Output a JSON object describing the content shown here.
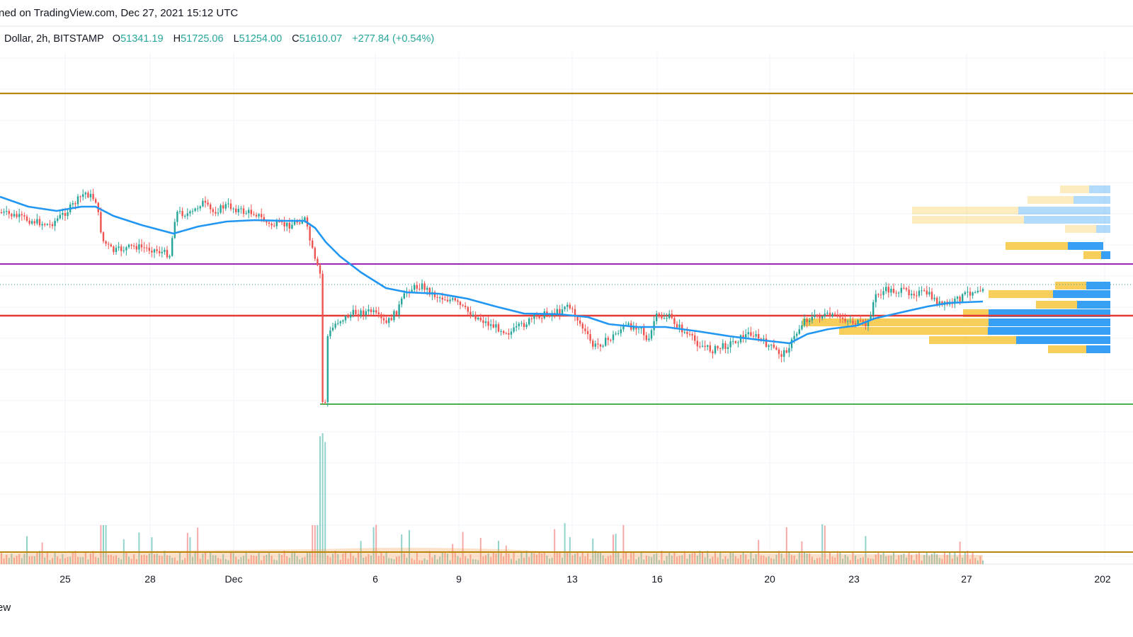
{
  "header": {
    "published": "ned on TradingView.com, Dec 27, 2021 15:12 UTC",
    "symbol": "Dollar, 2h, BITSTAMP",
    "open_label": "O",
    "open_value": "51341.19",
    "high_label": "H",
    "high_value": "51725.06",
    "low_label": "L",
    "low_value": "51254.00",
    "close_label": "C",
    "close_value": "51610.07",
    "change": "+277.84 (+0.54%)"
  },
  "footer": {
    "brand": "ew"
  },
  "colors": {
    "up": "#26a69a",
    "down": "#ef5350",
    "ma": "#2196f3",
    "resistance_top": "#b8860b",
    "purple_level": "#9c27b0",
    "red_level": "#e53935",
    "green_level": "#4caf50",
    "vp_yellow": "#f7c948",
    "vp_blue": "#2196f3"
  },
  "chart_data": {
    "type": "candlestick",
    "x_tick_labels": [
      "25",
      "28",
      "Dec",
      "6",
      "9",
      "13",
      "16",
      "20",
      "23",
      "27",
      "202"
    ],
    "horizontal_levels": [
      "resistance-top",
      "purple-level",
      "red-level",
      "green-support",
      "volume-baseline"
    ],
    "ma_series": "moving-average",
    "has_volume_profile": true,
    "has_volume_histogram": true
  }
}
